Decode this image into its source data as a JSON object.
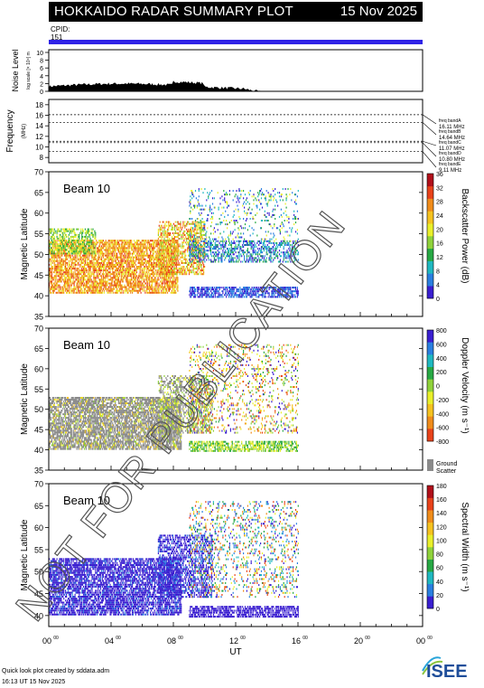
{
  "header": {
    "title": "HOKKAIDO RADAR SUMMARY PLOT",
    "date": "15 Nov 2025"
  },
  "cpid": {
    "label": "CPID:",
    "value": "151"
  },
  "noise_panel": {
    "ylabel": "Noise Level",
    "ylabel_sub": "log scale [× 10⁴] m",
    "yticks": [
      "0",
      "2",
      "4",
      "6",
      "8",
      "10"
    ]
  },
  "freq_panel": {
    "ylabel": "Frequency",
    "ylabel_unit": "(MHz)",
    "yticks": [
      "8",
      "10",
      "12",
      "14",
      "16",
      "18"
    ],
    "bands": [
      {
        "name": "freq bandA",
        "freq": "16.11 MHz"
      },
      {
        "name": "freq bandB",
        "freq": "14.64 MHz"
      },
      {
        "name": "freq bandC",
        "freq": "11.07 MHz"
      },
      {
        "name": "freq bandD",
        "freq": "10.80 MHz"
      },
      {
        "name": "freq bandE",
        "freq": "9.11 MHz"
      }
    ]
  },
  "panels": [
    {
      "beam": "Beam 10",
      "ylabel": "Magnetic Latitude",
      "yticks": [
        "35",
        "40",
        "45",
        "50",
        "55",
        "60",
        "65",
        "70"
      ],
      "cbar_label": "Backscatter Power (dB)",
      "cbar_ticks": [
        "0",
        "4",
        "8",
        "12",
        "16",
        "20",
        "24",
        "28",
        "32",
        "36"
      ],
      "colors": [
        "#3a1fd0",
        "#2a7fe0",
        "#1fb8c0",
        "#27a844",
        "#8fd23a",
        "#e9ef2a",
        "#f5c21f",
        "#f08c1a",
        "#e8421a",
        "#b0101a"
      ]
    },
    {
      "beam": "Beam 10",
      "ylabel": "Magnetic Latitude",
      "yticks": [
        "35",
        "40",
        "45",
        "50",
        "55",
        "60",
        "65",
        "70"
      ],
      "cbar_label": "Doppler Velocity (m s⁻¹)",
      "cbar_ticks": [
        "800",
        "600",
        "400",
        "200",
        "0",
        "-200",
        "-400",
        "-600",
        "-800"
      ],
      "colors": [
        "#3a1fd0",
        "#2a7fe0",
        "#1fb8c0",
        "#27a844",
        "#8fd23a",
        "#e9ef2a",
        "#f5c21f",
        "#f08c1a",
        "#e8421a"
      ],
      "ground_scatter_label_1": "Ground",
      "ground_scatter_label_2": "Scatter"
    },
    {
      "beam": "Beam 10",
      "ylabel": "Magnetic Latitude",
      "yticks": [
        "40",
        "45",
        "50",
        "55",
        "60",
        "65",
        "70"
      ],
      "cbar_label": "Spectral Width (m s⁻¹)",
      "cbar_ticks": [
        "0",
        "20",
        "40",
        "60",
        "80",
        "100",
        "120",
        "140",
        "160",
        "180"
      ],
      "colors": [
        "#3a1fd0",
        "#2a7fe0",
        "#1fb8c0",
        "#27a844",
        "#8fd23a",
        "#e9ef2a",
        "#f5c21f",
        "#f08c1a",
        "#e8421a",
        "#b0101a"
      ]
    }
  ],
  "xaxis": {
    "label": "UT",
    "ticks": [
      "00",
      "04",
      "08",
      "12",
      "16",
      "20",
      "00"
    ],
    "tick_sup": "00"
  },
  "watermark": "NOT FOR PUBLICATION",
  "footer": {
    "line1": "Quick look plot created by sddata.adm",
    "line2": "16:13 UT 15 Nov 2025",
    "logo": "ISEE"
  },
  "chart_data": {
    "type": "heatmap",
    "x": [
      "00",
      "04",
      "08",
      "12",
      "16",
      "20",
      "00"
    ],
    "xlabel": "UT",
    "ylabel": "Magnetic Latitude",
    "ylim": [
      35,
      70
    ],
    "series": [
      {
        "name": "Backscatter Power (dB)",
        "range": [
          0,
          36
        ]
      },
      {
        "name": "Doppler Velocity (m s⁻¹)",
        "range": [
          -800,
          800
        ]
      },
      {
        "name": "Spectral Width (m s⁻¹)",
        "range": [
          0,
          180
        ]
      }
    ]
  }
}
